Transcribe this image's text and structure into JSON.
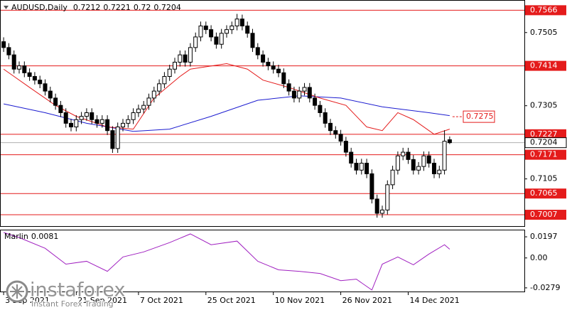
{
  "chart_data": [
    {
      "type": "candlestick",
      "title": "AUDUSD,Daily",
      "candles": [
        [
          0.748,
          0.7492,
          0.7452,
          0.7464
        ],
        [
          0.7464,
          0.7476,
          0.7432,
          0.7444
        ],
        [
          0.7444,
          0.7456,
          0.7393,
          0.7405
        ],
        [
          0.7405,
          0.7426,
          0.7393,
          0.7414
        ],
        [
          0.7414,
          0.7426,
          0.7383,
          0.7395
        ],
        [
          0.7395,
          0.7407,
          0.7373,
          0.7385
        ],
        [
          0.7385,
          0.7397,
          0.7363,
          0.7375
        ],
        [
          0.7375,
          0.7387,
          0.7353,
          0.7365
        ],
        [
          0.7365,
          0.7377,
          0.7333,
          0.7345
        ],
        [
          0.7345,
          0.7357,
          0.7314,
          0.7326
        ],
        [
          0.7326,
          0.7338,
          0.7294,
          0.7306
        ],
        [
          0.7306,
          0.7318,
          0.7274,
          0.7286
        ],
        [
          0.7286,
          0.7298,
          0.7245,
          0.7257
        ],
        [
          0.7257,
          0.7269,
          0.7235,
          0.7247
        ],
        [
          0.7247,
          0.7279,
          0.7235,
          0.7267
        ],
        [
          0.7267,
          0.7288,
          0.7255,
          0.7276
        ],
        [
          0.7276,
          0.7298,
          0.7264,
          0.7286
        ],
        [
          0.7286,
          0.7298,
          0.7255,
          0.7267
        ],
        [
          0.7267,
          0.7279,
          0.7245,
          0.7257
        ],
        [
          0.7257,
          0.7279,
          0.7245,
          0.7267
        ],
        [
          0.7267,
          0.7279,
          0.7225,
          0.7237
        ],
        [
          0.7237,
          0.7249,
          0.7176,
          0.7188
        ],
        [
          0.7188,
          0.7259,
          0.7176,
          0.7247
        ],
        [
          0.7247,
          0.7269,
          0.7235,
          0.7257
        ],
        [
          0.7257,
          0.7279,
          0.7245,
          0.7267
        ],
        [
          0.7267,
          0.7298,
          0.7255,
          0.7286
        ],
        [
          0.7286,
          0.7308,
          0.7274,
          0.7296
        ],
        [
          0.7296,
          0.7318,
          0.7284,
          0.7306
        ],
        [
          0.7306,
          0.7338,
          0.7294,
          0.7326
        ],
        [
          0.7326,
          0.7357,
          0.7314,
          0.7345
        ],
        [
          0.7345,
          0.7377,
          0.7333,
          0.7365
        ],
        [
          0.7365,
          0.7397,
          0.7353,
          0.7385
        ],
        [
          0.7385,
          0.7417,
          0.7373,
          0.7405
        ],
        [
          0.7405,
          0.7436,
          0.7393,
          0.7424
        ],
        [
          0.7424,
          0.7456,
          0.7412,
          0.7444
        ],
        [
          0.7444,
          0.7456,
          0.7412,
          0.7424
        ],
        [
          0.7424,
          0.7476,
          0.7412,
          0.7464
        ],
        [
          0.7464,
          0.7505,
          0.7452,
          0.7493
        ],
        [
          0.7493,
          0.7535,
          0.7481,
          0.7523
        ],
        [
          0.7523,
          0.7535,
          0.7501,
          0.7513
        ],
        [
          0.7513,
          0.7525,
          0.7481,
          0.7493
        ],
        [
          0.7493,
          0.7505,
          0.7461,
          0.7473
        ],
        [
          0.7473,
          0.7515,
          0.7461,
          0.7503
        ],
        [
          0.7503,
          0.7525,
          0.7491,
          0.7513
        ],
        [
          0.7513,
          0.7535,
          0.7501,
          0.7523
        ],
        [
          0.7523,
          0.7556,
          0.7511,
          0.7542
        ],
        [
          0.7542,
          0.7554,
          0.7511,
          0.7523
        ],
        [
          0.7523,
          0.7535,
          0.7491,
          0.7503
        ],
        [
          0.7503,
          0.7515,
          0.7452,
          0.7464
        ],
        [
          0.7464,
          0.7476,
          0.7432,
          0.7444
        ],
        [
          0.7444,
          0.7456,
          0.7412,
          0.7424
        ],
        [
          0.7424,
          0.7436,
          0.7402,
          0.7414
        ],
        [
          0.7414,
          0.7426,
          0.7393,
          0.7405
        ],
        [
          0.7405,
          0.7417,
          0.7383,
          0.7395
        ],
        [
          0.7395,
          0.7407,
          0.7353,
          0.7365
        ],
        [
          0.7365,
          0.7377,
          0.7333,
          0.7345
        ],
        [
          0.7345,
          0.7357,
          0.7314,
          0.7326
        ],
        [
          0.7326,
          0.7357,
          0.7314,
          0.7345
        ],
        [
          0.7345,
          0.7367,
          0.7333,
          0.7355
        ],
        [
          0.7355,
          0.7367,
          0.7314,
          0.7326
        ],
        [
          0.7326,
          0.7338,
          0.7294,
          0.7306
        ],
        [
          0.7306,
          0.7318,
          0.7274,
          0.7286
        ],
        [
          0.7286,
          0.7298,
          0.7245,
          0.7257
        ],
        [
          0.7257,
          0.7269,
          0.7225,
          0.7237
        ],
        [
          0.7237,
          0.7249,
          0.7215,
          0.7227
        ],
        [
          0.7227,
          0.7239,
          0.7196,
          0.7208
        ],
        [
          0.7208,
          0.722,
          0.7166,
          0.7178
        ],
        [
          0.7178,
          0.719,
          0.7136,
          0.7148
        ],
        [
          0.7148,
          0.716,
          0.7117,
          0.7129
        ],
        [
          0.7129,
          0.716,
          0.7117,
          0.7148
        ],
        [
          0.7148,
          0.716,
          0.7107,
          0.7119
        ],
        [
          0.7119,
          0.7131,
          0.7038,
          0.705
        ],
        [
          0.705,
          0.7062,
          0.6999,
          0.7011
        ],
        [
          0.7011,
          0.7032,
          0.6999,
          0.702
        ],
        [
          0.702,
          0.7101,
          0.7008,
          0.7089
        ],
        [
          0.7089,
          0.7141,
          0.7077,
          0.7129
        ],
        [
          0.7129,
          0.718,
          0.7117,
          0.7168
        ],
        [
          0.7168,
          0.719,
          0.7156,
          0.7178
        ],
        [
          0.7178,
          0.719,
          0.7146,
          0.7158
        ],
        [
          0.7158,
          0.717,
          0.7117,
          0.7129
        ],
        [
          0.7129,
          0.7151,
          0.7117,
          0.7139
        ],
        [
          0.7139,
          0.718,
          0.7127,
          0.7168
        ],
        [
          0.7168,
          0.718,
          0.7136,
          0.7148
        ],
        [
          0.7148,
          0.716,
          0.7107,
          0.7119
        ],
        [
          0.7119,
          0.7141,
          0.7107,
          0.7129
        ],
        [
          0.7129,
          0.7238,
          0.7117,
          0.7208
        ],
        [
          0.7212,
          0.7221,
          0.72,
          0.7204
        ]
      ],
      "up_color": "#ffffff",
      "down_color": "#000000",
      "xlim": [
        -0.7,
        100.4
      ],
      "xticks": [
        {
          "value": 0,
          "label": "3 Sep 2021"
        },
        {
          "value": 14,
          "label": "21 Sep 2021"
        },
        {
          "value": 26,
          "label": "7 Oct 2021"
        },
        {
          "value": 39,
          "label": "25 Oct 2021"
        },
        {
          "value": 52,
          "label": "10 Nov 2021"
        },
        {
          "value": 65,
          "label": "26 Nov 2021"
        },
        {
          "value": 78,
          "label": "14 Dec 2021"
        }
      ],
      "ylim": [
        0.6976,
        0.7592
      ],
      "yticks": [
        0.7505,
        0.7305,
        0.7105
      ],
      "levels": [
        {
          "value": 0.7566,
          "color": "#e41b1b"
        },
        {
          "value": 0.7414,
          "color": "#e41b1b"
        },
        {
          "value": 0.7227,
          "color": "#e41b1b"
        },
        {
          "value": 0.7171,
          "color": "#e41b1b"
        },
        {
          "value": 0.7065,
          "color": "#e41b1b"
        },
        {
          "value": 0.7007,
          "color": "#e41b1b"
        }
      ],
      "last_price": {
        "value": 0.7204,
        "color": "#b0b0b0"
      },
      "series": [
        {
          "color": "#1c1cd0",
          "x": [
            0,
            8,
            16,
            25,
            32,
            40,
            49,
            57,
            65,
            73,
            82,
            86
          ],
          "values": [
            0.731,
            0.7286,
            0.7257,
            0.7235,
            0.7241,
            0.7276,
            0.732,
            0.7332,
            0.7326,
            0.7302,
            0.7286,
            0.7278
          ]
        },
        {
          "color": "#e41b1b",
          "x": [
            0,
            2,
            5,
            10,
            14,
            20,
            25,
            29,
            34,
            36,
            43,
            47,
            50,
            55,
            61,
            66,
            70,
            73,
            76,
            79,
            83,
            86
          ],
          "values": [
            0.7405,
            0.7385,
            0.7355,
            0.7306,
            0.7276,
            0.7247,
            0.7241,
            0.7326,
            0.7385,
            0.7405,
            0.742,
            0.7405,
            0.7375,
            0.7355,
            0.7326,
            0.7306,
            0.7247,
            0.7237,
            0.7286,
            0.7267,
            0.7227,
            0.7241
          ]
        }
      ],
      "callout": {
        "value": 0.7275,
        "color": "#e41b1b"
      }
    },
    {
      "type": "line",
      "name": "Marlin",
      "value": 0.0081,
      "xlim": [
        -0.7,
        100.4
      ],
      "ylim": [
        -0.0313,
        0.0257
      ],
      "yticks": [
        0.0197,
        {
          "value": 0,
          "label": "0.00"
        },
        -0.0279
      ],
      "series": [
        {
          "color": "#a020c0",
          "x": [
            0,
            3,
            8,
            12,
            16,
            20,
            23,
            27,
            32,
            36,
            40,
            45,
            49,
            53,
            57,
            61,
            65,
            68,
            71,
            73,
            76,
            79,
            82,
            85,
            86
          ],
          "values": [
            0.0237,
            0.019,
            0.009,
            -0.0058,
            -0.0031,
            -0.0125,
            0.0009,
            0.0056,
            0.0143,
            0.0224,
            0.0123,
            0.0157,
            -0.0031,
            -0.0111,
            -0.0125,
            -0.0145,
            -0.0212,
            -0.0198,
            -0.0299,
            -0.0058,
            0.0009,
            -0.0064,
            0.0036,
            0.0123,
            0.0081
          ]
        }
      ]
    }
  ],
  "watermark": {
    "name": "instaforex",
    "tagline": "Instant Forex Trading"
  }
}
